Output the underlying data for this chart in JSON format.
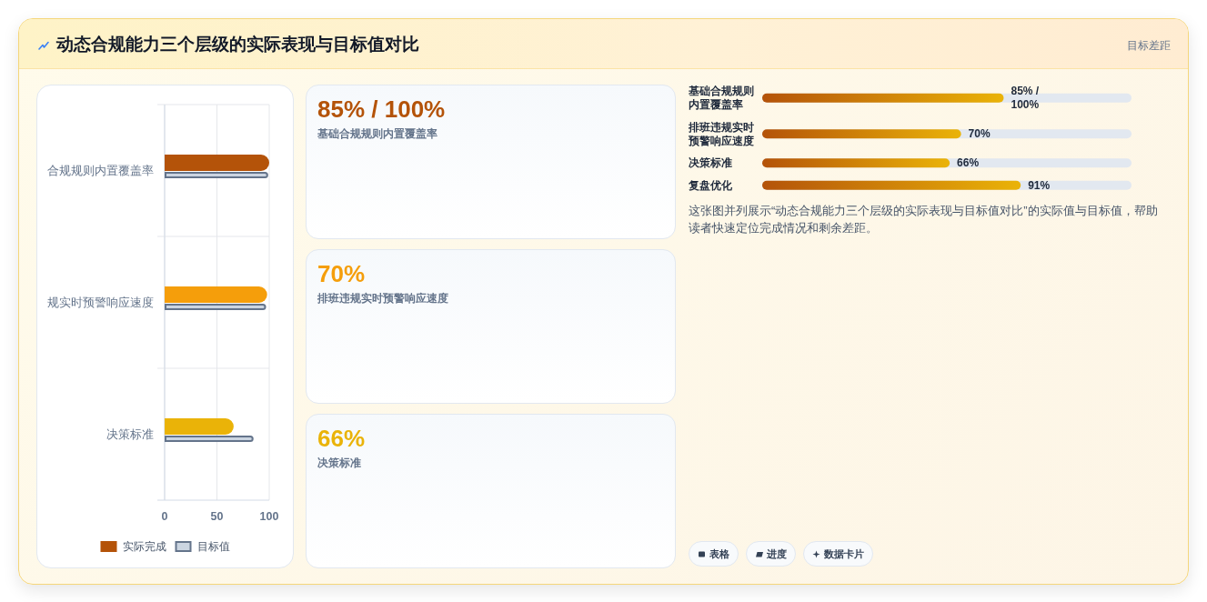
{
  "chart_data": [
    {
      "type": "other",
      "title": "动态合规能力三个层级的实际表现与目标值对比",
      "subtitle": "目标差距"
    },
    {
      "type": "bar",
      "orientation": "horizontal",
      "categories": [
        "合规规则内置覆盖率",
        "规实时预警响应速度",
        "决策标准"
      ],
      "series": [
        {
          "name": "实际完成",
          "colors": [
            "#b45309",
            "#f59e0b",
            "#eab308"
          ],
          "values": [
            100,
            98,
            66
          ]
        },
        {
          "name": "目标值",
          "color": "#cbd5e1",
          "values": [
            99,
            97,
            85
          ]
        }
      ],
      "xlim": [
        0,
        100
      ],
      "xticks": [
        0,
        50,
        100
      ],
      "grid": true,
      "legend": "bottom"
    },
    {
      "type": "other",
      "title": "85% / 100%",
      "subtitle": "基础合规规则内置覆盖率",
      "color": "#b45309"
    },
    {
      "type": "other",
      "title": "70%",
      "subtitle": "排班违规实时预警响应速度",
      "color": "#f59e0b"
    },
    {
      "type": "other",
      "title": "66%",
      "subtitle": "决策标准",
      "color": "#eab308"
    },
    {
      "type": "bar",
      "orientation": "horizontal",
      "categories": [
        "基础合规规则内置覆盖率",
        "排班违规实时预警响应速度",
        "决策标准",
        "复盘优化"
      ],
      "values": [
        85,
        70,
        66,
        91
      ],
      "value_labels": [
        "85% / 100%",
        "70%",
        "66%",
        "91%"
      ],
      "tick_labels": "y",
      "color": "#b45309",
      "annotations": [
        "这张图并列展示“动态合规能力三个层级的实际表现与目标值对比”的实际值与目标值，帮助读者快速定位完成情况和剩余差距。"
      ]
    },
    {
      "type": "other",
      "annotations": [
        "表格",
        "进度",
        "数据卡片"
      ]
    }
  ]
}
